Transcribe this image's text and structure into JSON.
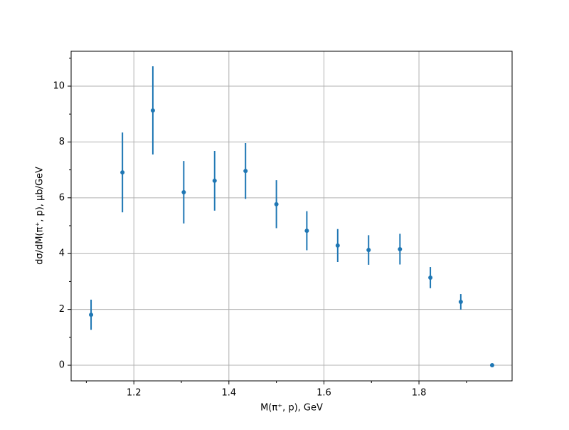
{
  "chart_data": {
    "type": "errorbar",
    "xlabel": "M(π⁺, p), GeV",
    "ylabel": "dσ/dM(π⁺, p), μb/GeV",
    "x": [
      1.11,
      1.176,
      1.24,
      1.305,
      1.37,
      1.435,
      1.5,
      1.564,
      1.629,
      1.694,
      1.76,
      1.824,
      1.888,
      1.954
    ],
    "values": [
      1.81,
      6.91,
      9.13,
      6.2,
      6.61,
      6.96,
      5.77,
      4.82,
      4.29,
      4.13,
      4.16,
      3.14,
      2.27,
      0
    ],
    "errors": [
      0.54,
      1.43,
      1.58,
      1.12,
      1.07,
      1.0,
      0.86,
      0.7,
      0.59,
      0.53,
      0.55,
      0.38,
      0.28,
      0
    ],
    "color": "#1f77b4",
    "xlim": [
      1.068,
      1.996
    ],
    "ylim": [
      -0.56,
      11.25
    ],
    "xticks": [
      1.2,
      1.4,
      1.6,
      1.8
    ],
    "yticks": [
      0,
      2,
      4,
      6,
      8,
      10
    ],
    "xminorticks": [
      1.1,
      1.3,
      1.5,
      1.7,
      1.9
    ],
    "yminorticks": [
      1,
      3,
      5,
      7,
      9,
      11
    ],
    "grid": true
  }
}
